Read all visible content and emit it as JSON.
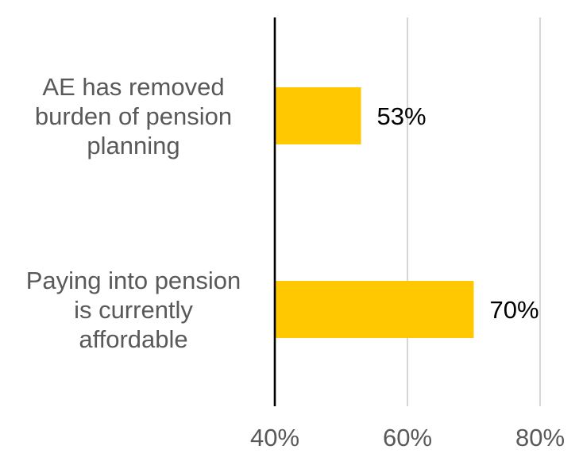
{
  "chart_data": {
    "type": "bar",
    "orientation": "horizontal",
    "categories": [
      [
        "AE has removed",
        "burden of pension",
        "planning"
      ],
      [
        "Paying into pension",
        "is currently",
        "affordable"
      ]
    ],
    "values": [
      53,
      70
    ],
    "data_labels": [
      "53%",
      "70%"
    ],
    "xlim": [
      40,
      80
    ],
    "xticks": [
      40,
      60,
      80
    ],
    "xtick_labels": [
      "40%",
      "60%",
      "80%"
    ],
    "bar_color": "#FFC800",
    "axis_color": "#000000",
    "grid_color": "#BFBFBF",
    "grid": true,
    "legend": false
  }
}
